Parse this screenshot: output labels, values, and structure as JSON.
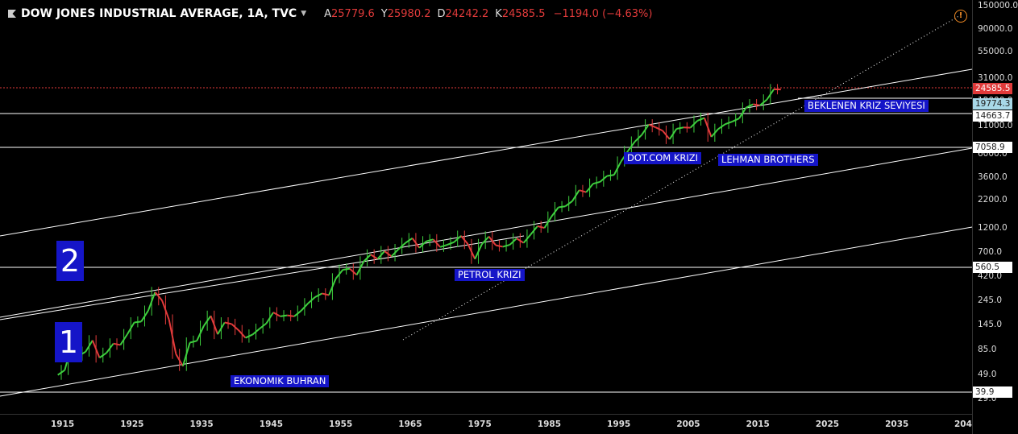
{
  "header": {
    "title": "DOW JONES INDUSTRIAL AVERAGE, 1A, TVC",
    "open_key": "A",
    "open_val": "25779.6",
    "high_key": "Y",
    "high_val": "25980.2",
    "low_key": "D",
    "low_val": "24242.2",
    "close_key": "K",
    "close_val": "24585.5",
    "change": "−1194.0 (−4.63%)"
  },
  "colors": {
    "background": "#000000",
    "up": "#3ecf3e",
    "down": "#e23b3b",
    "lines": "#ffffff",
    "label_bg": "#1515c8",
    "price_line": "#e03a3a",
    "alert": "#f08a24"
  },
  "price_labels": {
    "last": "24585.5",
    "level_1": "19774.3",
    "level_2": "14663.7",
    "level_3": "7058.9",
    "level_4": "560.5",
    "level_5": "39.9"
  },
  "annotations": {
    "beklenen": "BEKLENEN KRIZ SEVIYESI",
    "dotcom": "DOT.COM KRIZI",
    "lehman": "LEHMAN BROTHERS",
    "petrol": "PETROL KRIZI",
    "ekonomik": "EKONOMIK BUHRAN",
    "zone_2": "2",
    "zone_1": "1"
  },
  "alert_glyph": "!",
  "chart_data": {
    "type": "line",
    "title": "DOW JONES INDUSTRIAL AVERAGE, 1A, TVC",
    "log_scale": true,
    "xlim": [
      1907,
      2046
    ],
    "ylim": [
      22,
      155000
    ],
    "x_ticks": [
      "1915",
      "1925",
      "1935",
      "1945",
      "1955",
      "1965",
      "1975",
      "1985",
      "1995",
      "2005",
      "2015",
      "2025",
      "2035",
      "204"
    ],
    "y_ticks": [
      "150000.0",
      "90000.0",
      "55000.0",
      "31000.0",
      "19000.0",
      "11000.0",
      "6000.0",
      "3600.0",
      "2200.0",
      "1200.0",
      "700.0",
      "420.0",
      "245.0",
      "145.0",
      "85.0",
      "49.0",
      "29.0"
    ],
    "horizontal_levels": [
      24585.5,
      19774.3,
      14663.7,
      7058.9,
      560.5,
      39.9
    ],
    "series": [
      {
        "x": [
          1915,
          1916,
          1917,
          1918,
          1919,
          1920,
          1921,
          1922,
          1923,
          1924,
          1925,
          1926,
          1927,
          1928,
          1929,
          1930,
          1931,
          1932,
          1933,
          1934,
          1935,
          1936,
          1937,
          1938,
          1939,
          1940,
          1941,
          1942,
          1943,
          1944,
          1945,
          1946,
          1947,
          1948,
          1949,
          1950,
          1951,
          1952,
          1953,
          1954,
          1955,
          1956,
          1957,
          1958,
          1959,
          1960,
          1961,
          1962,
          1963,
          1964,
          1965,
          1966,
          1967,
          1968,
          1969,
          1970,
          1971,
          1972,
          1973,
          1974,
          1975,
          1976,
          1977,
          1978,
          1979,
          1980,
          1981,
          1982,
          1983,
          1984,
          1985,
          1986,
          1987,
          1988,
          1989,
          1990,
          1991,
          1992,
          1993,
          1994,
          1995,
          1996,
          1997,
          1998,
          1999,
          2000,
          2001,
          2002,
          2003,
          2004,
          2005,
          2006,
          2007,
          2008,
          2009,
          2010,
          2011,
          2012,
          2013,
          2014,
          2015,
          2016,
          2017,
          2018
        ],
        "y": [
          55,
          95,
          75,
          82,
          105,
          72,
          80,
          98,
          95,
          120,
          155,
          158,
          200,
          300,
          250,
          165,
          78,
          60,
          100,
          104,
          144,
          179,
          120,
          155,
          150,
          131,
          111,
          119,
          135,
          152,
          193,
          177,
          181,
          177,
          200,
          235,
          269,
          291,
          281,
          404,
          488,
          499,
          436,
          584,
          679,
          616,
          731,
          652,
          763,
          874,
          969,
          786,
          905,
          944,
          800,
          839,
          890,
          1020,
          850,
          616,
          852,
          1005,
          831,
          805,
          839,
          964,
          875,
          1047,
          1259,
          1212,
          1547,
          1896,
          1939,
          2169,
          2753,
          2634,
          3169,
          3301,
          3754,
          3834,
          5117,
          6448,
          7908,
          9181,
          11497,
          10787,
          10022,
          8342,
          10454,
          10783,
          10718,
          12463,
          13265,
          8776,
          10428,
          11578,
          12218,
          13104,
          16577,
          17823,
          17425,
          19763,
          24719,
          24585
        ],
        "name": ""
      }
    ]
  }
}
